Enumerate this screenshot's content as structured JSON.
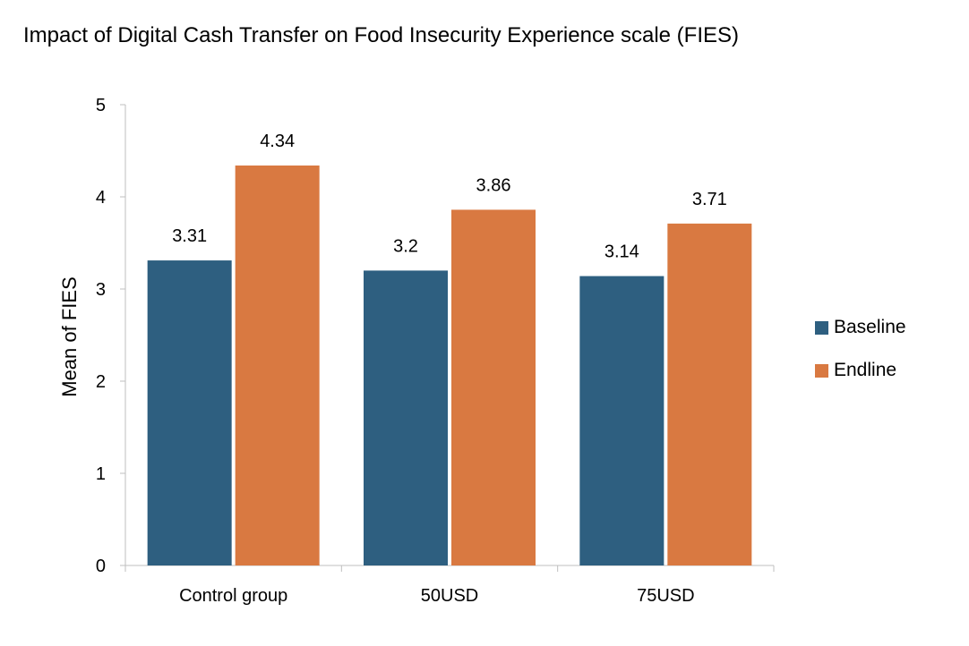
{
  "chart_data": {
    "type": "bar",
    "title": "Impact of Digital Cash Transfer on Food Insecurity Experience scale (FIES)",
    "xlabel": "",
    "ylabel": "Mean of FIES",
    "ylim": [
      0,
      5
    ],
    "yticks": [
      0,
      1,
      2,
      3,
      4,
      5
    ],
    "categories": [
      "Control group",
      "50USD",
      "75USD"
    ],
    "series": [
      {
        "name": "Baseline",
        "color": "#2e5f80",
        "values": [
          3.31,
          3.2,
          3.14
        ],
        "labels": [
          "3.31",
          "3.2",
          "3.14"
        ]
      },
      {
        "name": "Endline",
        "color": "#d97941",
        "values": [
          4.34,
          3.86,
          3.71
        ],
        "labels": [
          "4.34",
          "3.86",
          "3.71"
        ]
      }
    ],
    "grid": false,
    "legend_position": "right"
  }
}
